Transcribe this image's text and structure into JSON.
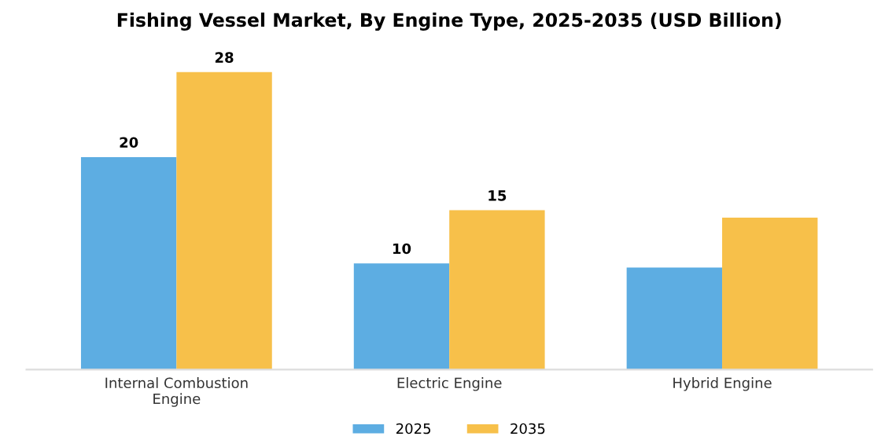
{
  "chart_data": {
    "type": "bar",
    "title": "Fishing Vessel Market, By Engine Type, 2025-2035 (USD Billion)",
    "categories": [
      "Internal Combustion\nEngine",
      "Electric Engine",
      "Hybrid Engine"
    ],
    "series": [
      {
        "name": "2025",
        "color": "#5dade2",
        "values": [
          20,
          10,
          9.6
        ],
        "value_labels": [
          "20",
          "10",
          null
        ]
      },
      {
        "name": "2035",
        "color": "#f7c04a",
        "values": [
          28,
          15,
          14.3
        ],
        "value_labels": [
          "28",
          "15",
          null
        ]
      }
    ],
    "legend": "bottom",
    "grid": false
  }
}
